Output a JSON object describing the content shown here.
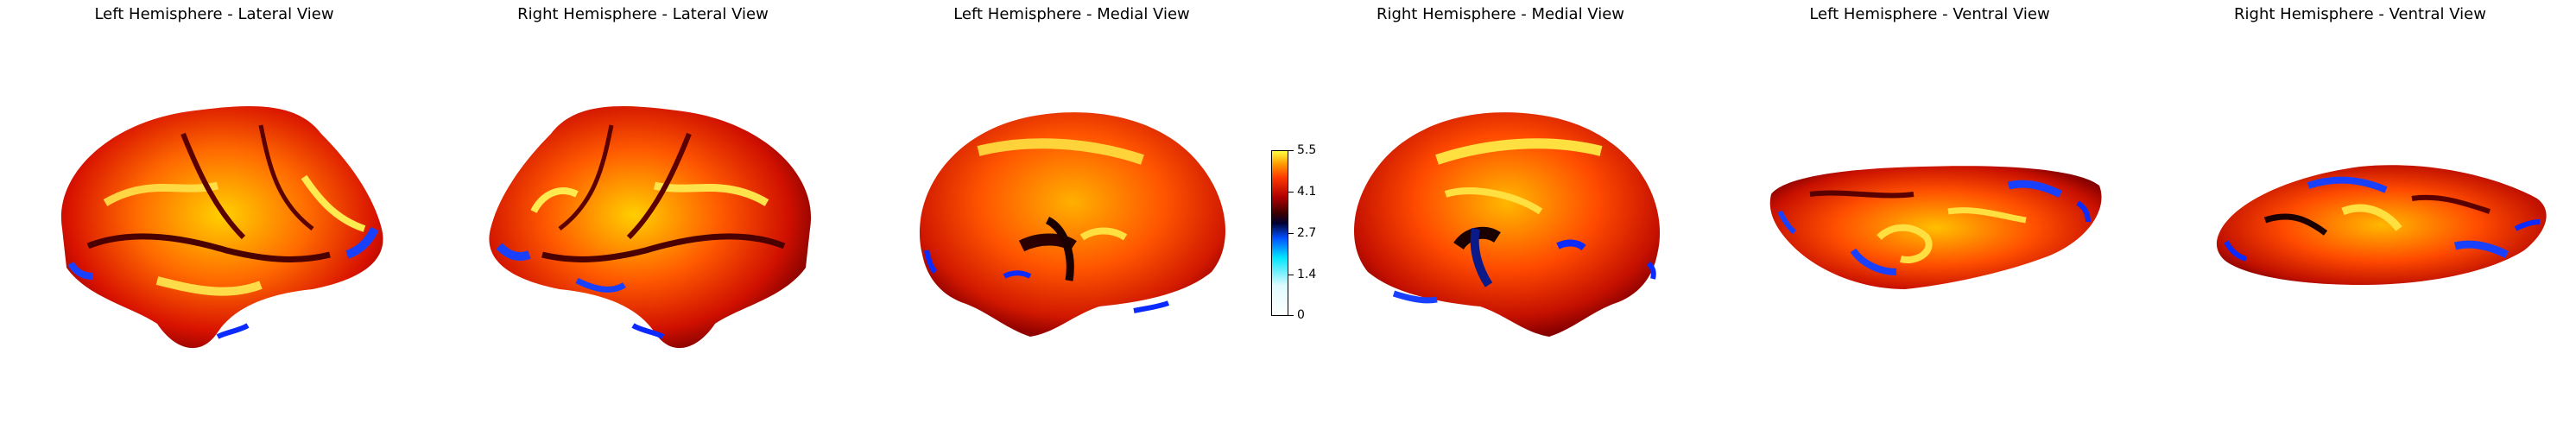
{
  "panels": [
    {
      "title": "Left Hemisphere - Lateral View"
    },
    {
      "title": "Right Hemisphere - Lateral View"
    },
    {
      "title": "Left Hemisphere - Medial View"
    },
    {
      "title": "Right Hemisphere - Medial View"
    },
    {
      "title": "Left Hemisphere - Ventral View"
    },
    {
      "title": "Right Hemisphere - Ventral View"
    }
  ],
  "colorbar": {
    "ticks": [
      "5.5",
      "4.1",
      "2.7",
      "1.4",
      "0"
    ]
  },
  "colors": {
    "low": "#ffffff",
    "mid_low": "#00e5ff",
    "mid": "#0050ff",
    "dark": "#000033",
    "high_dark": "#b00000",
    "high": "#ff3a00",
    "max": "#ffff40"
  }
}
